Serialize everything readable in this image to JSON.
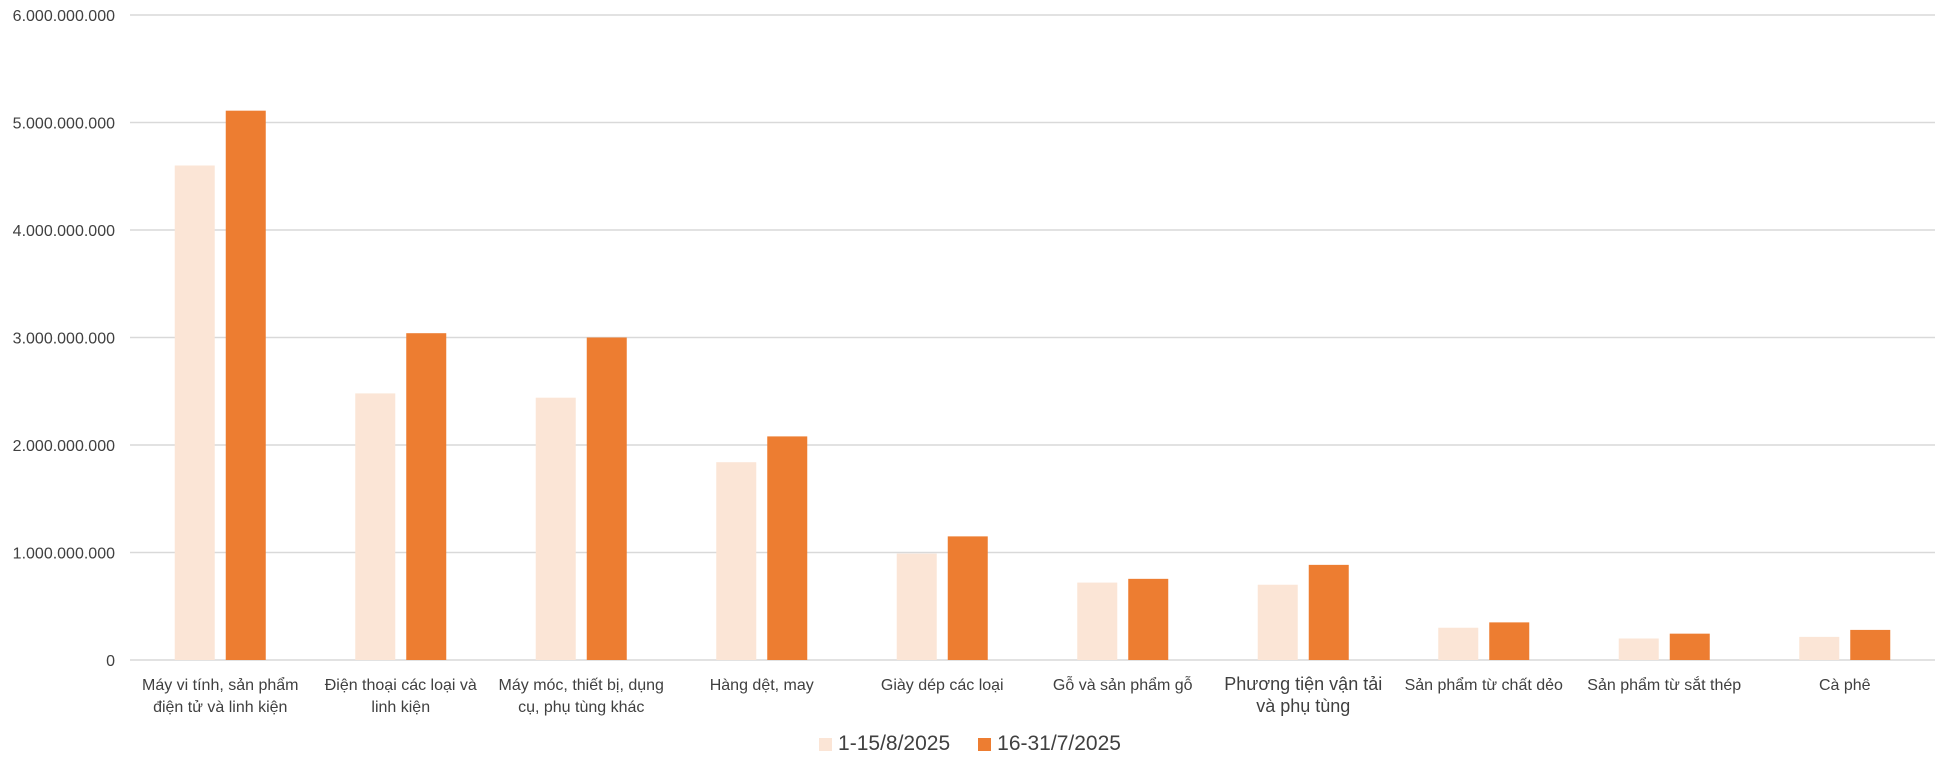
{
  "chart_data": {
    "type": "bar",
    "categories": [
      [
        "Máy vi tính, sản phẩm",
        "điện tử và linh kiện"
      ],
      [
        "Điện thoại các loại và",
        "linh kiện"
      ],
      [
        "Máy móc, thiết bị, dụng",
        "cụ, phụ tùng khác"
      ],
      [
        "Hàng dệt, may"
      ],
      [
        "Giày dép các loại"
      ],
      [
        "Gỗ và sản phẩm gỗ"
      ],
      [
        "Phương tiện vận tải",
        "và phụ tùng"
      ],
      [
        "Sản phẩm từ chất dẻo"
      ],
      [
        "Sản phẩm từ sắt thép"
      ],
      [
        "Cà phê"
      ]
    ],
    "series": [
      {
        "name": "1-15/8/2025",
        "color": "#fbe5d6",
        "values": [
          4600000000,
          2480000000,
          2440000000,
          1840000000,
          990000000,
          720000000,
          700000000,
          300000000,
          200000000,
          215000000
        ]
      },
      {
        "name": "16-31/7/2025",
        "color": "#ed7d31",
        "values": [
          5110000000,
          3040000000,
          3000000000,
          2080000000,
          1150000000,
          755000000,
          885000000,
          350000000,
          245000000,
          280000000
        ]
      }
    ],
    "yticks": [
      "0",
      "1.000.000.000",
      "2.000.000.000",
      "3.000.000.000",
      "4.000.000.000",
      "5.000.000.000",
      "6.000.000.000"
    ],
    "ylim": [
      0,
      6000000000
    ],
    "grid": true,
    "legend_position": "bottom"
  }
}
